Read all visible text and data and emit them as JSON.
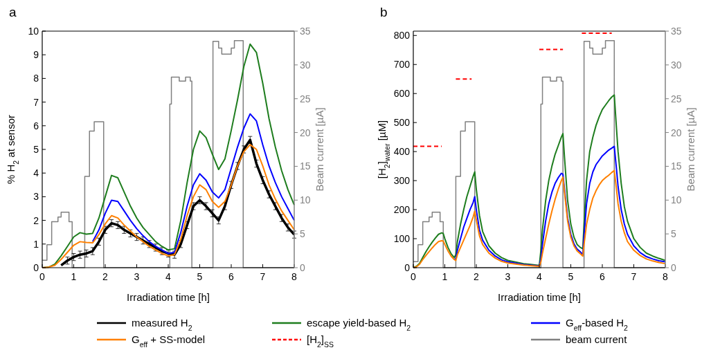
{
  "chart_data": [
    {
      "type": "line",
      "title": "a",
      "xlabel": "Irradiation time [h]",
      "ylabel": "% H$_{2}$ at sensor",
      "y2label": "Beam current [µA]",
      "legend": "bottom",
      "xlim": [
        0,
        8
      ],
      "ylim": [
        0,
        10
      ],
      "y2lim": [
        0,
        35
      ],
      "xticks": [
        0,
        1,
        2,
        3,
        4,
        5,
        6,
        7,
        8
      ],
      "yticks": [
        0,
        1,
        2,
        3,
        4,
        5,
        6,
        7,
        8,
        9,
        10
      ],
      "y2ticks": [
        0,
        5,
        10,
        15,
        20,
        25,
        30,
        35
      ],
      "x": [
        0,
        0.2,
        0.4,
        0.6,
        0.8,
        1.0,
        1.2,
        1.4,
        1.6,
        1.8,
        2.0,
        2.2,
        2.4,
        2.6,
        2.8,
        3.0,
        3.2,
        3.4,
        3.6,
        3.8,
        4.0,
        4.2,
        4.4,
        4.6,
        4.8,
        5.0,
        5.2,
        5.4,
        5.6,
        5.8,
        6.0,
        6.2,
        6.4,
        6.6,
        6.8,
        7.0,
        7.2,
        7.4,
        7.6,
        7.8,
        8.0
      ],
      "series": [
        {
          "name": "beam current",
          "type": "step",
          "axis": "y2",
          "color": "#808080",
          "x": [
            0,
            0.15,
            0.3,
            0.5,
            0.6,
            0.85,
            0.95,
            1.3,
            1.35,
            1.5,
            1.65,
            1.95,
            4.0,
            4.05,
            4.1,
            4.35,
            4.55,
            4.7,
            4.75,
            5.38,
            5.42,
            5.6,
            5.7,
            6.0,
            6.1,
            6.38,
            8
          ],
          "values": [
            1.1,
            3.4,
            6.8,
            7.5,
            8.2,
            6.8,
            0,
            0,
            13.5,
            20.2,
            21.6,
            0,
            0,
            24.2,
            28.2,
            27.6,
            28.2,
            27.6,
            0,
            0,
            33.5,
            32.5,
            31.6,
            32.5,
            33.6,
            0,
            0
          ]
        },
        {
          "name": "measured H$_{2}$",
          "color": "#000000",
          "values": [
            null,
            null,
            null,
            0.1,
            0.3,
            0.45,
            0.55,
            0.6,
            0.7,
            1.1,
            1.6,
            1.88,
            1.8,
            1.6,
            1.45,
            1.3,
            1.15,
            1.0,
            0.85,
            0.7,
            0.6,
            0.55,
            1.0,
            1.8,
            2.6,
            2.85,
            2.6,
            2.3,
            2.0,
            2.6,
            3.5,
            4.3,
            5.0,
            5.4,
            4.4,
            3.7,
            3.1,
            2.6,
            2.1,
            1.7,
            1.4
          ],
          "errors": [
            null,
            null,
            null,
            null,
            0.15,
            0.15,
            0.15,
            0.15,
            0.15,
            0.15,
            0.15,
            0.15,
            0.15,
            0.15,
            0.15,
            0.15,
            0.15,
            0.15,
            0.15,
            0.15,
            0.15,
            0.15,
            0.15,
            0.15,
            0.15,
            0.15,
            0.15,
            0.15,
            0.15,
            0.15,
            0.15,
            0.15,
            0.15,
            0.15,
            0.15,
            0.15,
            0.15,
            0.15,
            0.15,
            0.15,
            0.15
          ]
        },
        {
          "name": "escape yield-based H$_{2}$",
          "color": "#1e7d1e",
          "values": [
            0,
            0.02,
            0.15,
            0.5,
            0.9,
            1.3,
            1.48,
            1.42,
            1.45,
            2.1,
            3.0,
            3.9,
            3.8,
            3.2,
            2.6,
            2.1,
            1.7,
            1.4,
            1.1,
            0.9,
            0.75,
            0.8,
            2.0,
            3.6,
            5.0,
            5.78,
            5.5,
            4.8,
            4.15,
            4.6,
            5.8,
            7.1,
            8.5,
            9.45,
            9.1,
            7.8,
            6.3,
            5.1,
            4.1,
            3.3,
            2.65
          ]
        },
        {
          "name": "G$_{eff}$-based H$_{2}$",
          "color": "#0000ff",
          "values": [
            null,
            null,
            null,
            null,
            null,
            null,
            null,
            null,
            1.1,
            1.6,
            2.3,
            2.85,
            2.8,
            2.4,
            2.0,
            1.65,
            1.35,
            1.1,
            0.9,
            0.75,
            0.6,
            0.65,
            1.5,
            2.6,
            3.5,
            3.97,
            3.7,
            3.2,
            2.95,
            3.3,
            4.2,
            5.1,
            5.9,
            6.5,
            6.2,
            5.2,
            4.3,
            3.6,
            3.0,
            2.5,
            2.0
          ]
        },
        {
          "name": "G$_{eff}$ + SS-model",
          "color": "#ff8000",
          "values": [
            0,
            0.02,
            0.1,
            0.35,
            0.65,
            0.95,
            1.1,
            1.07,
            1.05,
            1.4,
            1.85,
            2.2,
            2.1,
            1.8,
            1.55,
            1.3,
            1.1,
            0.9,
            0.75,
            0.6,
            0.5,
            0.55,
            1.2,
            2.2,
            3.0,
            3.5,
            3.3,
            2.8,
            2.55,
            2.8,
            3.5,
            4.3,
            4.9,
            5.2,
            5.0,
            4.3,
            3.5,
            2.9,
            2.4,
            2.0,
            1.6
          ]
        }
      ]
    },
    {
      "type": "line",
      "title": "b",
      "xlabel": "Irradiation time [h]",
      "ylabel": "[H$_{2}$]$_{water}$ [µM]",
      "y2label": "Beam current [µA]",
      "legend": "bottom",
      "xlim": [
        0,
        8
      ],
      "ylim": [
        0,
        815
      ],
      "y2lim": [
        0,
        35
      ],
      "xticks": [
        0,
        1,
        2,
        3,
        4,
        5,
        6,
        7,
        8
      ],
      "yticks": [
        0,
        100,
        200,
        300,
        400,
        500,
        600,
        700,
        800
      ],
      "y2ticks": [
        0,
        5,
        10,
        15,
        20,
        25,
        30,
        35
      ],
      "x": [
        0,
        0.1,
        0.2,
        0.3,
        0.4,
        0.5,
        0.6,
        0.7,
        0.8,
        0.9,
        0.95,
        1.0,
        1.1,
        1.2,
        1.3,
        1.35,
        1.4,
        1.5,
        1.6,
        1.7,
        1.8,
        1.9,
        1.95,
        2.0,
        2.1,
        2.2,
        2.4,
        2.6,
        2.8,
        3.0,
        3.5,
        4.0,
        4.05,
        4.1,
        4.2,
        4.3,
        4.4,
        4.5,
        4.6,
        4.7,
        4.75,
        4.8,
        4.9,
        5.0,
        5.1,
        5.2,
        5.3,
        5.38,
        5.42,
        5.5,
        5.6,
        5.7,
        5.8,
        5.9,
        6.0,
        6.1,
        6.2,
        6.3,
        6.38,
        6.45,
        6.5,
        6.6,
        6.7,
        6.8,
        7.0,
        7.2,
        7.4,
        7.6,
        7.8,
        8.0
      ],
      "series": [
        {
          "name": "[H$_{2}$]$_{SS}$",
          "color": "#ff0000",
          "line_style": "dashed",
          "x": [
            0,
            0.9,
            0.95,
            1.35,
            1.85,
            1.9,
            4.0,
            4.75,
            4.8,
            5.35,
            6.3
          ],
          "values": [
            418,
            418,
            null,
            650,
            650,
            null,
            752,
            752,
            null,
            808,
            808
          ]
        },
        {
          "name": "beam current",
          "type": "step",
          "axis": "y2",
          "color": "#808080",
          "x": [
            0,
            0.15,
            0.3,
            0.5,
            0.6,
            0.85,
            0.95,
            1.3,
            1.35,
            1.5,
            1.65,
            1.95,
            4.0,
            4.05,
            4.1,
            4.35,
            4.55,
            4.7,
            4.75,
            5.38,
            5.42,
            5.6,
            5.7,
            6.0,
            6.1,
            6.38,
            8
          ],
          "values": [
            0.9,
            3.4,
            6.8,
            7.5,
            8.2,
            6.8,
            0,
            0,
            13.5,
            20.2,
            21.6,
            0,
            0,
            24.2,
            28.2,
            27.6,
            28.2,
            27.6,
            0,
            0,
            33.5,
            32.5,
            31.6,
            32.5,
            33.6,
            0,
            0
          ]
        },
        {
          "color": "#1e7d1e",
          "values": [
            0,
            5,
            15,
            35,
            55,
            72,
            88,
            102,
            115,
            120,
            118,
            100,
            70,
            48,
            35,
            45,
            90,
            150,
            200,
            245,
            280,
            315,
            330,
            270,
            180,
            125,
            75,
            50,
            35,
            25,
            14,
            8,
            60,
            130,
            230,
            300,
            350,
            390,
            420,
            450,
            462,
            380,
            230,
            150,
            105,
            80,
            70,
            65,
            150,
            300,
            400,
            450,
            490,
            520,
            545,
            560,
            575,
            588,
            595,
            480,
            400,
            290,
            210,
            160,
            100,
            70,
            50,
            40,
            32,
            25
          ]
        },
        {
          "color": "#0000ff",
          "values": [
            null,
            null,
            null,
            null,
            null,
            null,
            null,
            null,
            null,
            null,
            null,
            null,
            null,
            null,
            30,
            30,
            60,
            100,
            140,
            170,
            200,
            225,
            245,
            200,
            130,
            95,
            60,
            40,
            27,
            20,
            11,
            6,
            30,
            80,
            160,
            220,
            260,
            290,
            310,
            325,
            322,
            270,
            170,
            115,
            82,
            64,
            55,
            45,
            110,
            220,
            290,
            330,
            355,
            370,
            385,
            395,
            405,
            412,
            418,
            340,
            280,
            200,
            150,
            115,
            75,
            52,
            38,
            30,
            24,
            20
          ]
        },
        {
          "color": "#ff8000",
          "values": [
            0,
            3,
            12,
            28,
            42,
            55,
            68,
            80,
            90,
            93,
            92,
            80,
            58,
            40,
            28,
            25,
            45,
            70,
            95,
            120,
            145,
            175,
            195,
            165,
            110,
            80,
            50,
            33,
            22,
            16,
            9,
            5,
            20,
            50,
            100,
            150,
            195,
            235,
            270,
            300,
            312,
            260,
            160,
            105,
            75,
            58,
            48,
            40,
            80,
            150,
            200,
            240,
            265,
            285,
            300,
            310,
            318,
            328,
            335,
            270,
            220,
            160,
            120,
            90,
            60,
            42,
            30,
            23,
            18,
            14
          ]
        }
      ]
    }
  ]
}
